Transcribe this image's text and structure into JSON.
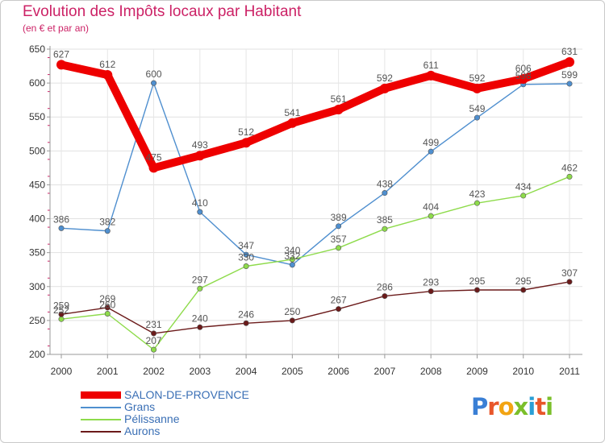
{
  "header": {
    "title": "Evolution des Impôts locaux par Habitant",
    "subtitle": "(en € et par an)"
  },
  "logo": {
    "text": "Proxiti",
    "colors": [
      "#3a7fd5",
      "#e8562a",
      "#f2a413",
      "#7bbf2a",
      "#2a9fd6",
      "#e8562a",
      "#7bbf2a"
    ]
  },
  "chart_data": {
    "type": "line",
    "x": [
      "2000",
      "2001",
      "2002",
      "2003",
      "2004",
      "2005",
      "2006",
      "2007",
      "2008",
      "2009",
      "2010",
      "2011"
    ],
    "ylim": [
      200,
      650
    ],
    "yticks": [
      200,
      250,
      300,
      350,
      400,
      450,
      500,
      550,
      600,
      650
    ],
    "grid": true,
    "legend_position": "bottom-left",
    "series": [
      {
        "name": "SALON-DE-PROVENCE",
        "color": "#ee0000",
        "values": [
          627,
          612,
          475,
          493,
          512,
          541,
          561,
          592,
          611,
          592,
          606,
          631
        ]
      },
      {
        "name": "Grans",
        "color": "#4f8fcf",
        "values": [
          386,
          382,
          600,
          410,
          347,
          332,
          389,
          438,
          499,
          549,
          598,
          599
        ]
      },
      {
        "name": "Pélissanne",
        "color": "#8edb4b",
        "values": [
          252,
          260,
          207,
          297,
          330,
          340,
          357,
          385,
          404,
          423,
          434,
          462
        ]
      },
      {
        "name": "Aurons",
        "color": "#6b1a1a",
        "values": [
          259,
          269,
          231,
          240,
          246,
          250,
          267,
          286,
          293,
          295,
          295,
          307
        ]
      }
    ]
  }
}
